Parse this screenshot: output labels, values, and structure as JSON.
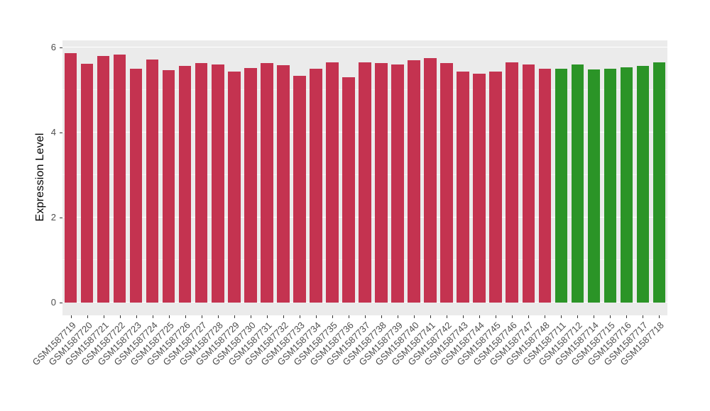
{
  "chart_data": {
    "type": "bar",
    "title": "",
    "xlabel": "",
    "ylabel": "Expression Level",
    "ylim": [
      0,
      6
    ],
    "yticks": [
      0,
      2,
      4,
      6
    ],
    "minor_yticks": [
      1,
      3,
      5
    ],
    "grid": true,
    "legend_position": "none",
    "panel_background": "#EBEBEB",
    "grid_color": "#FFFFFF",
    "axis_text_color": "#4d4d4d",
    "bar_groups": [
      {
        "color": "#C43350",
        "count": 30
      },
      {
        "color": "#2B9427",
        "count": 7
      }
    ],
    "categories": [
      "GSM1587719",
      "GSM1587720",
      "GSM1587721",
      "GSM1587722",
      "GSM1587723",
      "GSM1587724",
      "GSM1587725",
      "GSM1587726",
      "GSM1587727",
      "GSM1587728",
      "GSM1587729",
      "GSM1587730",
      "GSM1587731",
      "GSM1587732",
      "GSM1587733",
      "GSM1587734",
      "GSM1587735",
      "GSM1587736",
      "GSM1587737",
      "GSM1587738",
      "GSM1587739",
      "GSM1587740",
      "GSM1587741",
      "GSM1587742",
      "GSM1587743",
      "GSM1587744",
      "GSM1587745",
      "GSM1587746",
      "GSM1587747",
      "GSM1587748",
      "GSM1587711",
      "GSM1587712",
      "GSM1587714",
      "GSM1587715",
      "GSM1587716",
      "GSM1587717",
      "GSM1587718"
    ],
    "values": [
      5.87,
      5.62,
      5.8,
      5.83,
      5.5,
      5.72,
      5.47,
      5.57,
      5.63,
      5.6,
      5.43,
      5.52,
      5.63,
      5.58,
      5.33,
      5.5,
      5.65,
      5.3,
      5.65,
      5.63,
      5.6,
      5.7,
      5.75,
      5.63,
      5.43,
      5.38,
      5.43,
      5.65,
      5.6,
      5.5,
      5.5,
      5.6,
      5.48,
      5.5,
      5.53,
      5.57,
      5.65
    ]
  }
}
